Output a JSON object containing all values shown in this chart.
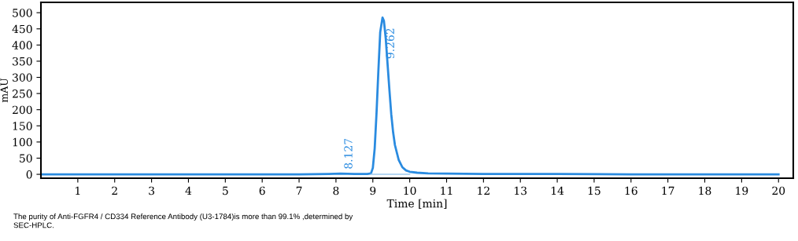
{
  "chart_data": {
    "type": "line",
    "xlabel": "Time [min]",
    "ylabel": "mAU",
    "xlim": [
      0,
      20.4
    ],
    "ylim": [
      -12,
      532
    ],
    "xticks": [
      1,
      2,
      3,
      4,
      5,
      6,
      7,
      8,
      9,
      10,
      11,
      12,
      13,
      14,
      15,
      16,
      17,
      18,
      19,
      20
    ],
    "yticks": [
      0,
      50,
      100,
      150,
      200,
      250,
      300,
      350,
      400,
      450,
      500
    ],
    "grid": false,
    "legend": false,
    "marker": "none",
    "line_style": "solid",
    "series": [
      {
        "color": "#2a8be0",
        "x": [
          0,
          7,
          7.8,
          8.127,
          8.5,
          8.85,
          8.95,
          9.0,
          9.05,
          9.1,
          9.15,
          9.2,
          9.262,
          9.3,
          9.35,
          9.4,
          9.45,
          9.5,
          9.55,
          9.6,
          9.7,
          9.8,
          9.9,
          10.0,
          10.2,
          10.5,
          11,
          12,
          14,
          16,
          20
        ],
        "values": [
          0,
          0,
          1,
          2,
          1,
          1,
          3,
          20,
          80,
          190,
          320,
          440,
          485,
          475,
          420,
          340,
          260,
          185,
          130,
          90,
          45,
          22,
          12,
          8,
          5,
          3,
          2,
          1,
          1,
          0,
          0
        ]
      },
      {
        "color": "#9cc8ee",
        "x": [
          8.95,
          10.0
        ],
        "values": [
          0,
          0
        ]
      }
    ],
    "annotations": [
      {
        "text": "9.262",
        "x": 9.262,
        "y": 485
      },
      {
        "text": "8.127",
        "x": 8.127,
        "y": 2
      },
      "The purity of Anti-FGFR4 / CD334 Reference Antibody (U3-1784)is more than 99.1% ,determined by SEC-HPLC."
    ]
  }
}
